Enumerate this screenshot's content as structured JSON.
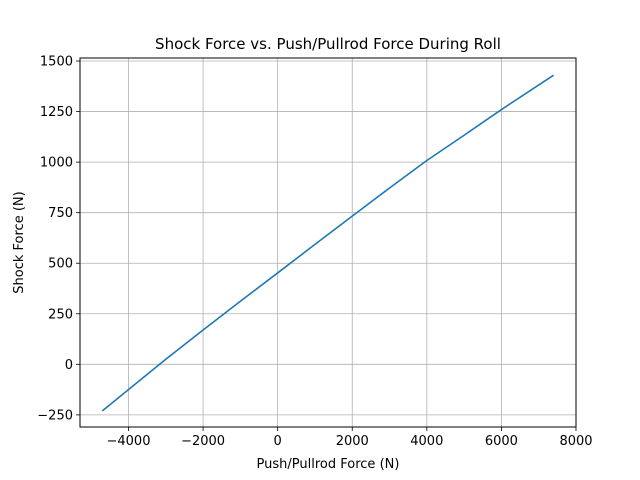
{
  "chart_data": {
    "type": "line",
    "title": "Shock Force vs. Push/Pullrod Force During Roll",
    "xlabel": "Push/Pullrod Force (N)",
    "ylabel": "Shock Force (N)",
    "xlim": [
      -5300,
      8000
    ],
    "ylim": [
      -310,
      1515
    ],
    "xticks": [
      -4000,
      -2000,
      0,
      2000,
      4000,
      6000,
      8000
    ],
    "xtick_labels": [
      "−4000",
      "−2000",
      "0",
      "2000",
      "4000",
      "6000",
      "8000"
    ],
    "yticks": [
      -250,
      0,
      250,
      500,
      750,
      1000,
      1250,
      1500
    ],
    "ytick_labels": [
      "−250",
      "0",
      "250",
      "500",
      "750",
      "1000",
      "1250",
      "1500"
    ],
    "grid": true,
    "legend": "none",
    "series": [
      {
        "color": "#1f77b4",
        "x": [
          -4700,
          -3000,
          -2000,
          -1000,
          0,
          1000,
          2000,
          3000,
          4000,
          5000,
          6000,
          7400
        ],
        "y": [
          -230,
          25,
          170,
          312,
          452,
          593,
          733,
          872,
          1008,
          1133,
          1260,
          1430
        ]
      }
    ]
  }
}
